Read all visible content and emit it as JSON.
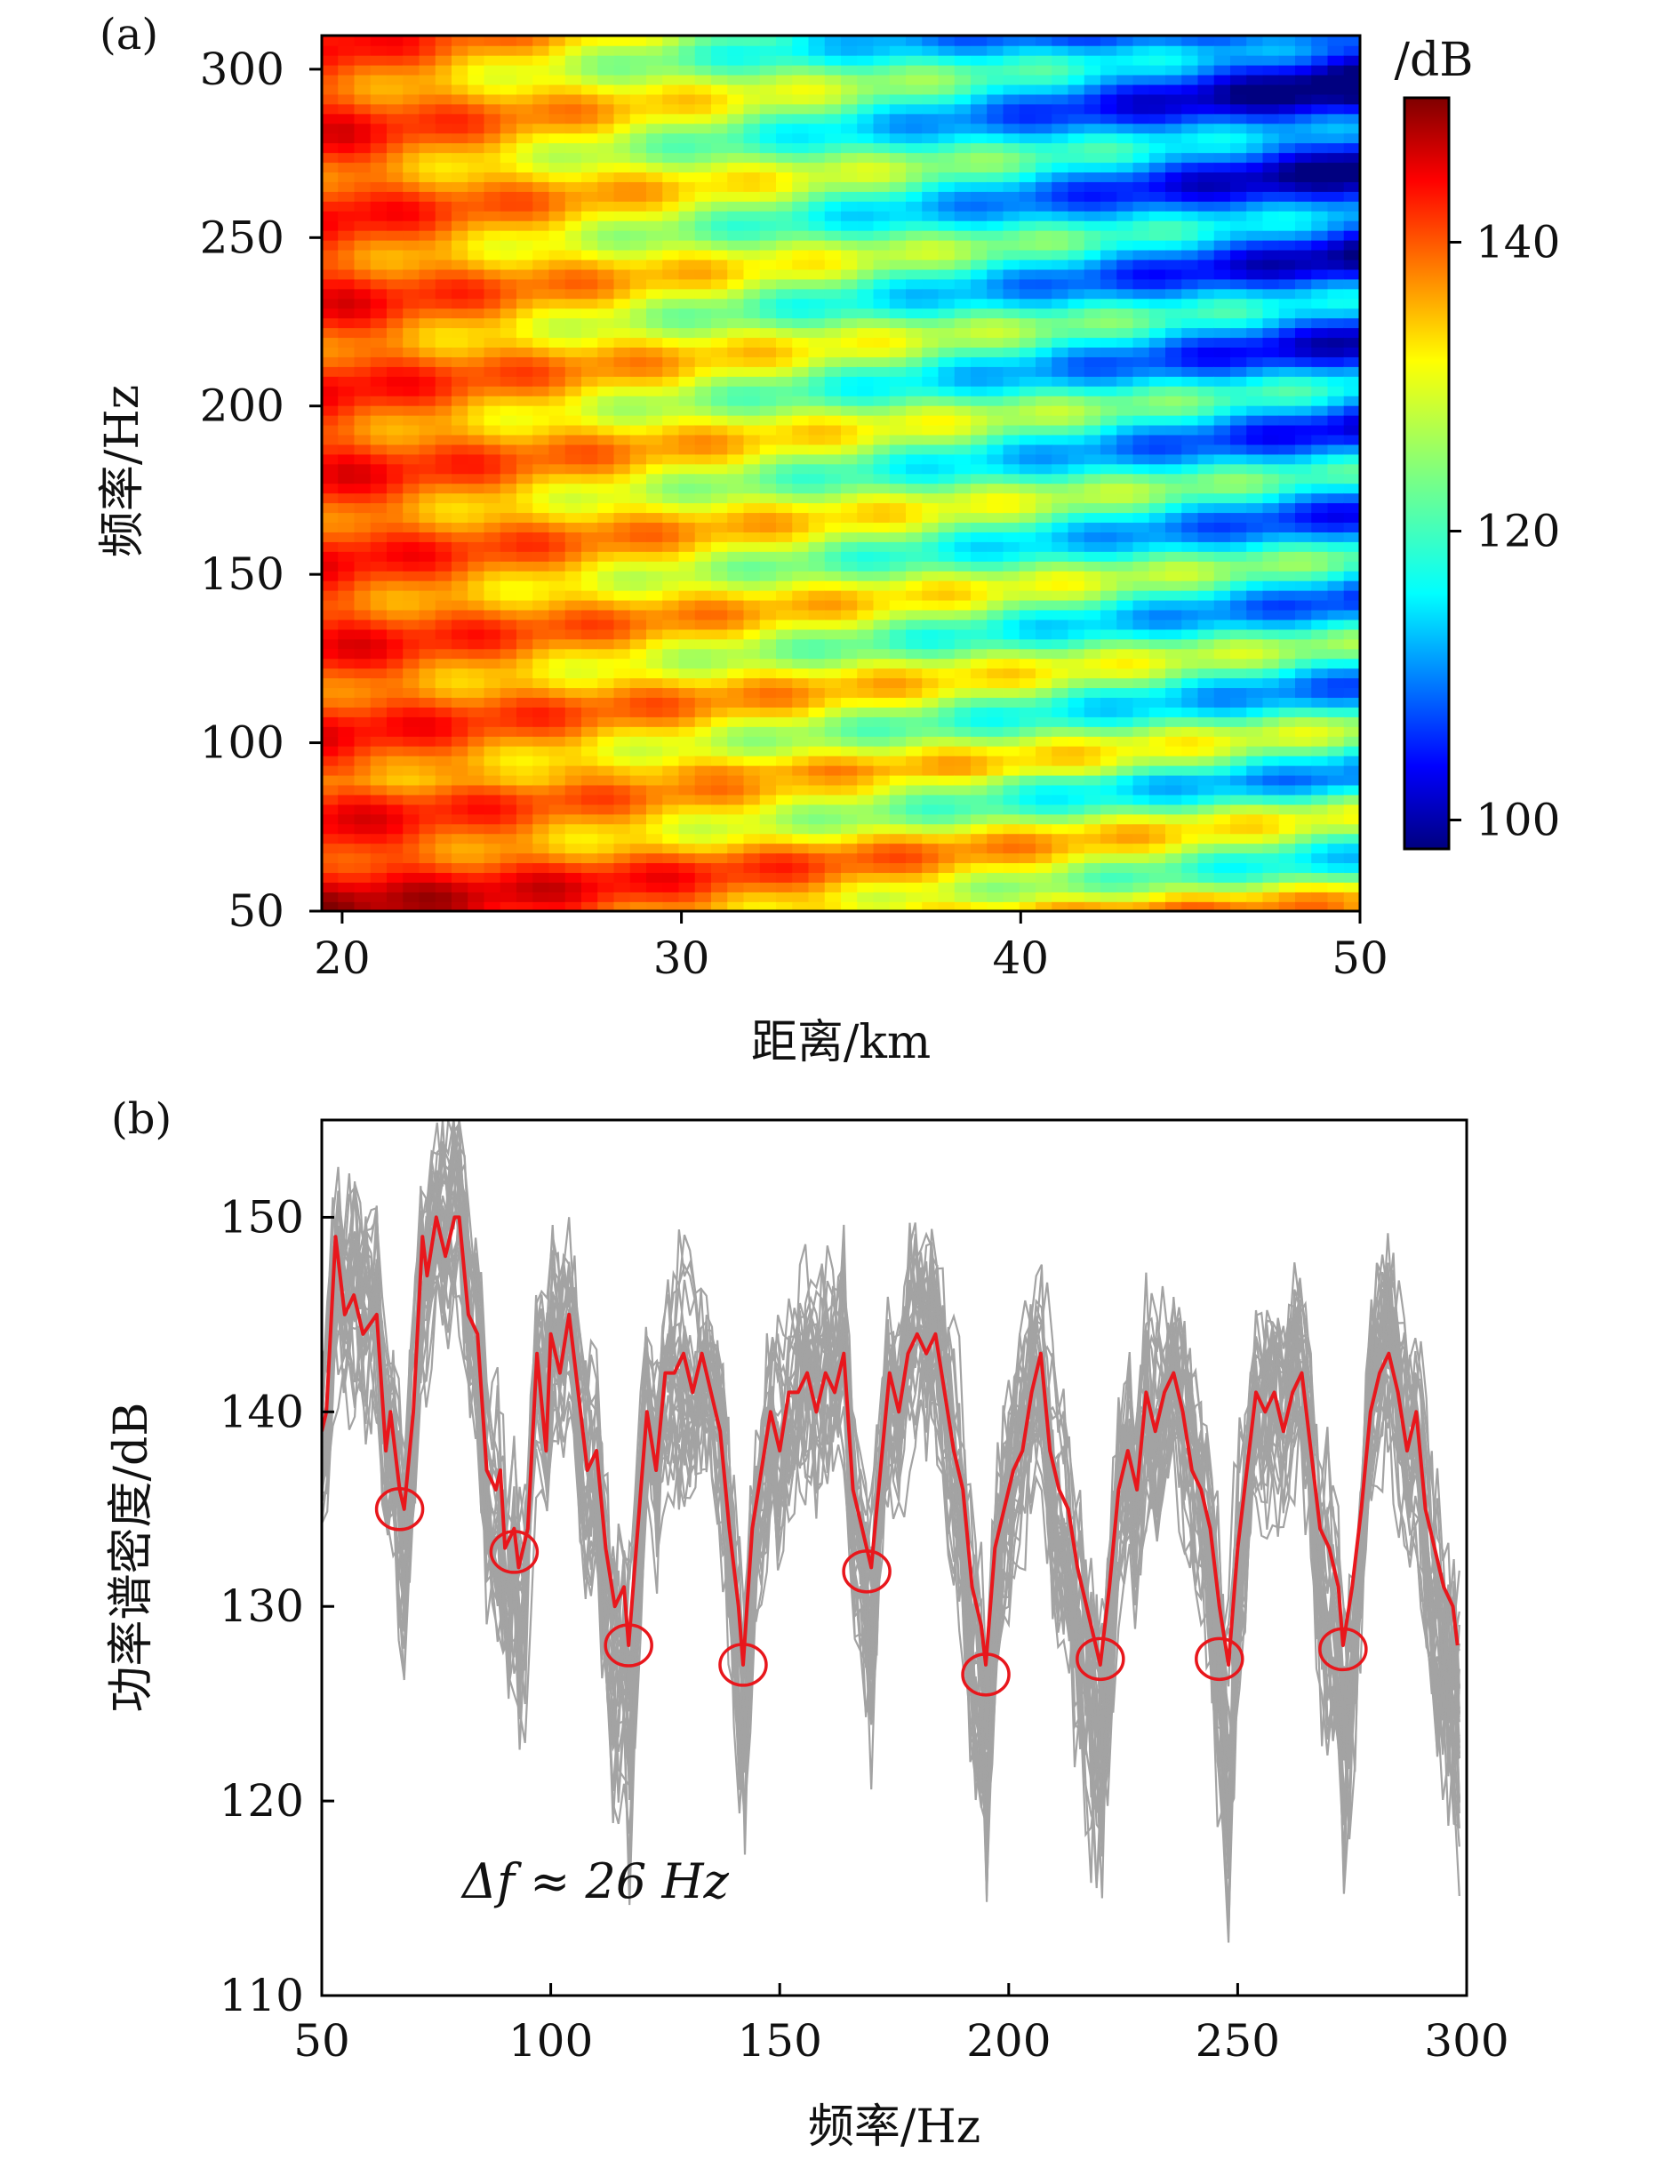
{
  "figure": {
    "panel_a_label": "(a)",
    "panel_b_label": "(b)"
  },
  "chart_data": [
    {
      "type": "heatmap",
      "panel": "(a)",
      "title": "",
      "xlabel": "距离/km",
      "ylabel": "频率/Hz",
      "xlim": [
        19.4,
        50
      ],
      "ylim": [
        50,
        310
      ],
      "xticks": [
        20,
        30,
        40,
        50
      ],
      "yticks": [
        50,
        100,
        150,
        200,
        250,
        300
      ],
      "colorbar": {
        "label": "/dB",
        "range": [
          98,
          150
        ],
        "ticks": [
          100,
          120,
          140
        ],
        "colormap": "jet"
      },
      "description_of_field": "Power level vs range and frequency: interference striations slanting upward with range; high levels (~140-150 dB) at short range and low frequency, decreasing to ~100 dB at long range and high frequency.",
      "band_frequencies_hz": [
        57,
        77,
        103,
        128,
        153,
        178,
        203,
        228,
        254,
        279,
        300
      ]
    },
    {
      "type": "line",
      "panel": "(b)",
      "title": "",
      "xlabel": "频率/Hz",
      "ylabel": "功率谱密度/dB",
      "xlim": [
        50,
        300
      ],
      "ylim": [
        110,
        155
      ],
      "xticks": [
        50,
        100,
        150,
        200,
        250,
        300
      ],
      "yticks": [
        110,
        120,
        130,
        140,
        150
      ],
      "annotation": "Δf ≈ 26 Hz",
      "series": [
        {
          "name": "mean spectrum",
          "color": "#e8171c",
          "x": [
            50,
            51,
            53,
            55,
            57,
            59,
            62,
            64,
            65,
            67,
            68,
            70,
            72,
            73,
            75,
            77,
            79,
            80,
            82,
            84,
            86,
            88,
            89,
            90,
            92,
            93,
            95,
            97,
            99,
            100,
            102,
            104,
            106,
            108,
            110,
            112,
            114,
            116,
            117,
            119,
            121,
            123,
            125,
            127,
            129,
            131,
            133,
            135,
            137,
            139,
            141,
            142,
            144,
            146,
            148,
            150,
            152,
            154,
            156,
            158,
            160,
            162,
            164,
            166,
            168,
            170,
            172,
            174,
            176,
            178,
            180,
            182,
            184,
            186,
            188,
            190,
            192,
            194,
            195,
            197,
            199,
            201,
            203,
            205,
            207,
            209,
            211,
            213,
            215,
            217,
            219,
            220,
            222,
            224,
            226,
            228,
            230,
            232,
            234,
            236,
            238,
            240,
            242,
            244,
            246,
            248,
            250,
            252,
            254,
            256,
            258,
            260,
            262,
            264,
            266,
            268,
            270,
            272,
            273,
            275,
            277,
            279,
            281,
            283,
            285,
            287,
            289,
            291,
            293,
            295,
            297,
            298
          ],
          "y": [
            139,
            140,
            149,
            145,
            146,
            144,
            145,
            138,
            140,
            136,
            135,
            140,
            149,
            147,
            150,
            148,
            150,
            150,
            145,
            144,
            137,
            136,
            137,
            133,
            134,
            132,
            134,
            143,
            138,
            144,
            142,
            145,
            141,
            137,
            138,
            133,
            130,
            131,
            128,
            134,
            140,
            137,
            142,
            142,
            143,
            141,
            143,
            141,
            139,
            134,
            130,
            127,
            134,
            137,
            140,
            138,
            141,
            141,
            142,
            140,
            142,
            141,
            143,
            136,
            134,
            132,
            137,
            142,
            140,
            143,
            144,
            143,
            144,
            141,
            138,
            136,
            131,
            129,
            127,
            133,
            135,
            137,
            138,
            141,
            143,
            138,
            136,
            135,
            132,
            130,
            128,
            127,
            131,
            136,
            138,
            136,
            141,
            139,
            141,
            142,
            140,
            137,
            136,
            134,
            130,
            127,
            133,
            137,
            141,
            140,
            141,
            139,
            141,
            142,
            138,
            134,
            133,
            131,
            128,
            131,
            135,
            140,
            142,
            143,
            141,
            138,
            140,
            135,
            133,
            131,
            130,
            128
          ]
        },
        {
          "name": "individual spectra (ensemble)",
          "color": "#a3a3a3",
          "spread_db": [
            -13,
            13
          ]
        }
      ],
      "minima_markers_hz": [
        67,
        92,
        117,
        142,
        169,
        195,
        220,
        246,
        273
      ],
      "minima_markers_db": [
        135,
        132.8,
        128,
        127,
        131.8,
        126.5,
        127.3,
        127.3,
        127.8
      ]
    }
  ]
}
